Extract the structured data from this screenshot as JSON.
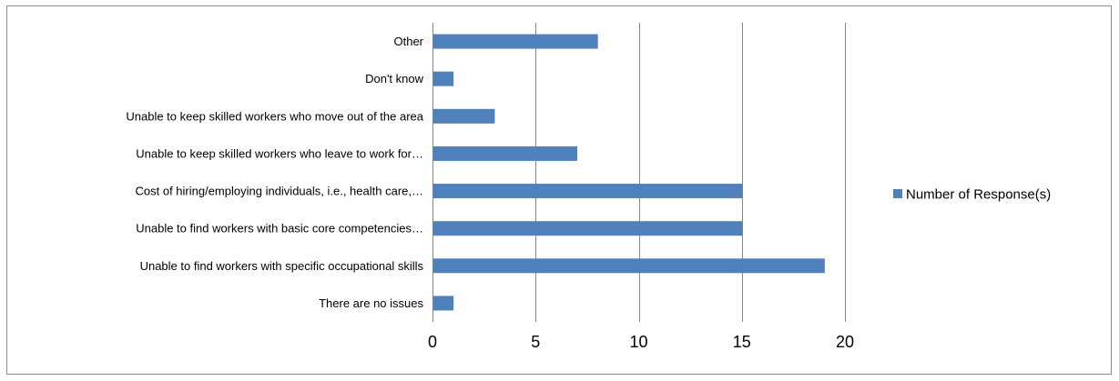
{
  "chart_data": {
    "type": "bar",
    "orientation": "horizontal",
    "categories": [
      "Other",
      "Don't know",
      "Unable to keep skilled workers who move out of the area",
      "Unable to keep skilled workers who leave to work for…",
      "Cost of hiring/employing individuals, i.e., health care,…",
      "Unable to find workers with basic core competencies…",
      "Unable to find workers with specific occupational skills",
      "There are no issues"
    ],
    "series": [
      {
        "name": "Number of Response(s)",
        "color": "#4f81bd",
        "values": [
          8,
          1,
          3,
          7,
          15,
          15,
          19,
          1
        ]
      }
    ],
    "xlim": [
      0,
      20
    ],
    "xticks": [
      0,
      5,
      10,
      15,
      20
    ],
    "grid": "vertical",
    "legend": "right",
    "title": "",
    "xlabel": "",
    "ylabel": ""
  }
}
